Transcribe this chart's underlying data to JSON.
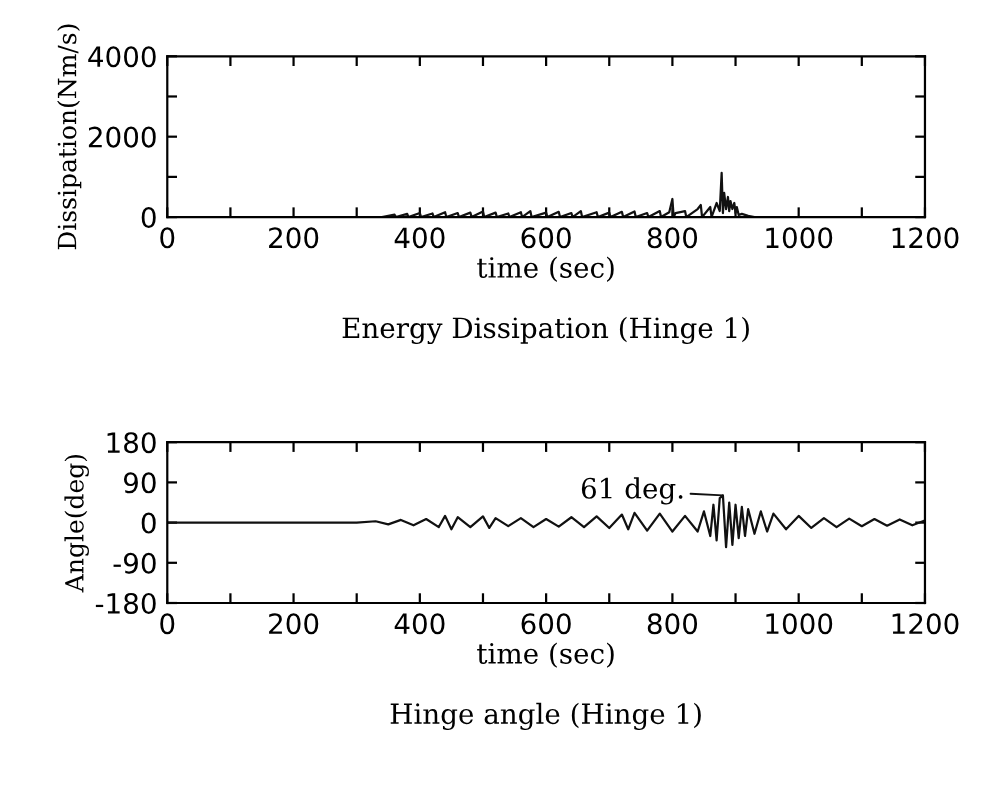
{
  "chart_data": [
    {
      "type": "line",
      "title": "Energy Dissipation (Hinge 1)",
      "xlabel": "time (sec)",
      "ylabel": "Dissipation(Nm/s)",
      "xlim": [
        0,
        1200
      ],
      "xticks": [
        0,
        {
          "value": 100,
          "label": null
        },
        200,
        {
          "value": 300,
          "label": null
        },
        400,
        {
          "value": 500,
          "label": null
        },
        600,
        {
          "value": 700,
          "label": null
        },
        800,
        {
          "value": 900,
          "label": null
        },
        1000,
        {
          "value": 1100,
          "label": null
        },
        1200
      ],
      "ylim": [
        0,
        4000
      ],
      "yticks": [
        0,
        {
          "value": 1000,
          "label": null
        },
        2000,
        {
          "value": 3000,
          "label": null
        },
        4000
      ],
      "grid": false,
      "series": [
        {
          "color": "#111111",
          "x": [
            0,
            340,
            360,
            362,
            380,
            382,
            400,
            402,
            420,
            422,
            440,
            442,
            460,
            462,
            480,
            482,
            500,
            502,
            520,
            522,
            540,
            542,
            560,
            562,
            575,
            577,
            600,
            602,
            620,
            622,
            640,
            642,
            655,
            657,
            680,
            682,
            700,
            702,
            720,
            722,
            740,
            742,
            760,
            762,
            780,
            782,
            795,
            800,
            802,
            805,
            820,
            822,
            840,
            845,
            847,
            860,
            862,
            870,
            875,
            878,
            880,
            882,
            885,
            888,
            890,
            892,
            895,
            898,
            900,
            902,
            905,
            910,
            920,
            930,
            1200
          ],
          "values": [
            0,
            0,
            60,
            0,
            80,
            0,
            100,
            0,
            90,
            0,
            120,
            0,
            100,
            0,
            110,
            0,
            140,
            0,
            110,
            0,
            90,
            0,
            120,
            0,
            150,
            0,
            110,
            0,
            130,
            0,
            100,
            0,
            150,
            0,
            120,
            0,
            110,
            0,
            130,
            0,
            140,
            0,
            100,
            0,
            150,
            0,
            120,
            450,
            0,
            100,
            150,
            0,
            200,
            300,
            0,
            250,
            0,
            350,
            150,
            1100,
            100,
            600,
            200,
            500,
            150,
            400,
            200,
            350,
            100,
            250,
            50,
            80,
            30,
            0,
            0
          ]
        }
      ]
    },
    {
      "type": "line",
      "title": "Hinge angle (Hinge 1)",
      "xlabel": "time (sec)",
      "ylabel": "Angle(deg)",
      "xlim": [
        0,
        1200
      ],
      "xticks": [
        0,
        {
          "value": 100,
          "label": null
        },
        200,
        {
          "value": 300,
          "label": null
        },
        400,
        {
          "value": 500,
          "label": null
        },
        600,
        {
          "value": 700,
          "label": null
        },
        800,
        {
          "value": 900,
          "label": null
        },
        1000,
        {
          "value": 1100,
          "label": null
        },
        1200
      ],
      "ylim": [
        -180,
        180
      ],
      "yticks": [
        -180,
        -90,
        0,
        90,
        180
      ],
      "grid": false,
      "annotations": [
        {
          "text": "61 deg.",
          "x": 880,
          "y": 61
        }
      ],
      "series": [
        {
          "color": "#111111",
          "x": [
            0,
            300,
            330,
            350,
            370,
            390,
            410,
            430,
            440,
            450,
            460,
            480,
            500,
            510,
            520,
            540,
            560,
            580,
            600,
            620,
            640,
            660,
            680,
            700,
            720,
            730,
            740,
            760,
            780,
            800,
            820,
            840,
            850,
            860,
            865,
            870,
            875,
            880,
            885,
            890,
            895,
            900,
            905,
            910,
            915,
            920,
            930,
            940,
            950,
            960,
            980,
            1000,
            1020,
            1040,
            1060,
            1080,
            1100,
            1120,
            1140,
            1160,
            1180,
            1200
          ],
          "values": [
            0,
            0,
            3,
            -4,
            6,
            -6,
            8,
            -10,
            15,
            -15,
            12,
            -10,
            14,
            -12,
            10,
            -8,
            10,
            -10,
            8,
            -9,
            12,
            -10,
            14,
            -12,
            18,
            -15,
            22,
            -18,
            20,
            -20,
            15,
            -20,
            25,
            -30,
            40,
            -40,
            55,
            61,
            -55,
            45,
            -50,
            40,
            -35,
            35,
            -30,
            30,
            -25,
            25,
            -20,
            20,
            -15,
            15,
            -12,
            10,
            -10,
            9,
            -8,
            8,
            -7,
            7,
            -6,
            5
          ]
        }
      ]
    }
  ]
}
